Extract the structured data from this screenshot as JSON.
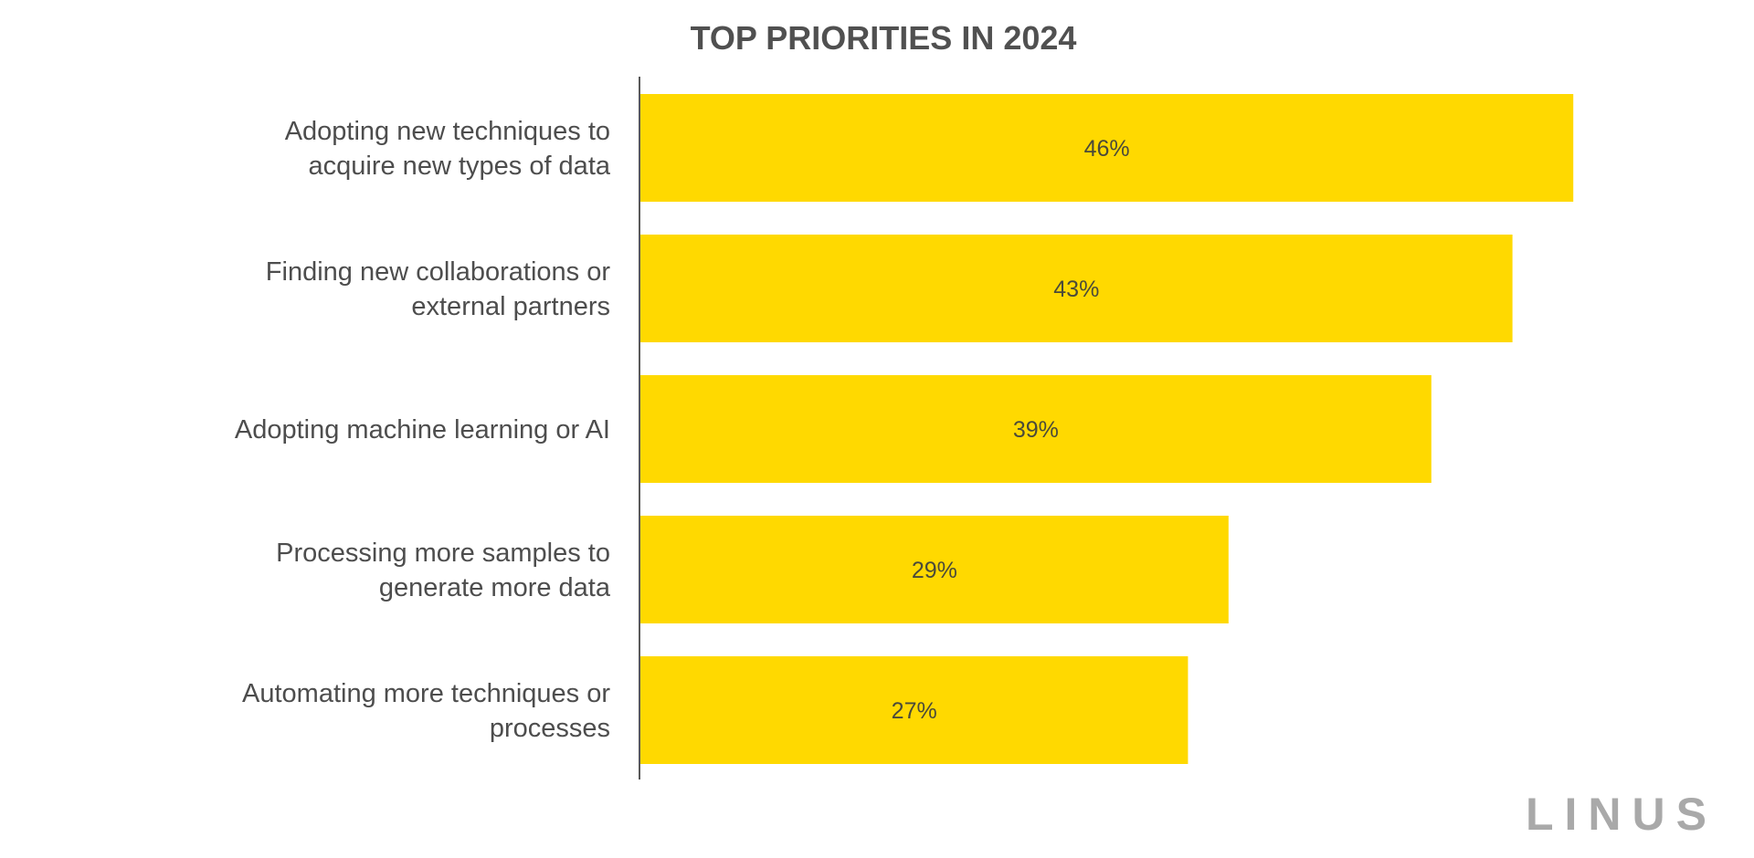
{
  "brand": "LINUS",
  "colors": {
    "bar": "#FFD900",
    "axis": "#222222",
    "text": "#4d4d4d",
    "brand": "#a9a9a9"
  },
  "chart_data": {
    "type": "bar",
    "orientation": "horizontal",
    "title": "TOP PRIORITIES IN 2024",
    "xlabel": "",
    "ylabel": "",
    "xlim": [
      0,
      50
    ],
    "grid": false,
    "categories": [
      [
        "Adopting new techniques to",
        "acquire new types of data"
      ],
      [
        "Finding new collaborations or",
        "external partners"
      ],
      [
        "Adopting machine learning or AI"
      ],
      [
        "Processing more samples to",
        "generate more data"
      ],
      [
        "Automating more techniques or",
        "processes"
      ]
    ],
    "values": [
      46,
      43,
      39,
      29,
      27
    ],
    "value_labels": [
      "46%",
      "43%",
      "39%",
      "29%",
      "27%"
    ]
  }
}
